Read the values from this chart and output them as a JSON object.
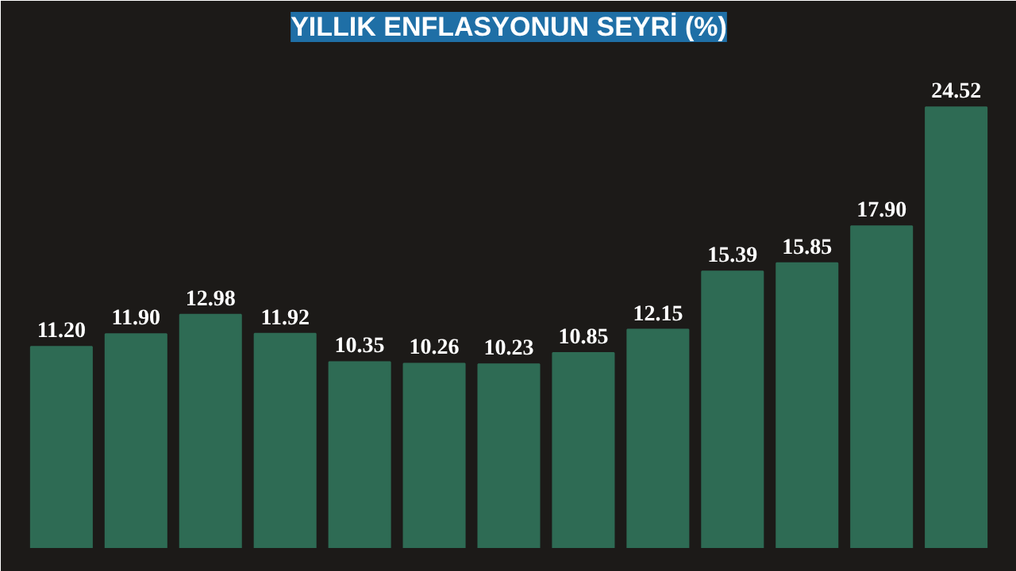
{
  "chart_data": {
    "type": "bar",
    "title": "YILLIK ENFLASYONUN SEYRİ (%)",
    "categories": [
      null,
      null,
      null,
      null,
      null,
      null,
      null,
      null,
      null,
      null,
      null,
      null,
      null
    ],
    "values": [
      11.2,
      11.9,
      12.98,
      11.92,
      10.35,
      10.26,
      10.23,
      10.85,
      12.15,
      15.39,
      15.85,
      17.9,
      24.52
    ],
    "color": "#2e6b54",
    "value_labels": [
      "11.20",
      "11.90",
      "12.98",
      "11.92",
      "10.35",
      "10.26",
      "10.23",
      "10.85",
      "12.15",
      "15.39",
      "15.85",
      "17.90",
      "24.52"
    ]
  }
}
